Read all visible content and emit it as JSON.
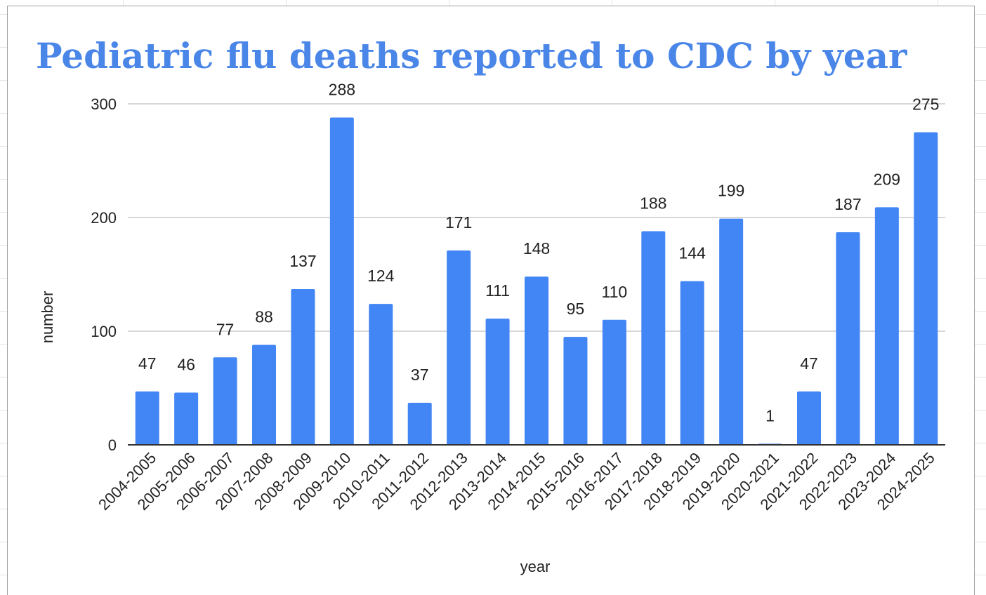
{
  "chart_data": {
    "type": "bar",
    "title": "Pediatric flu deaths reported to CDC by year",
    "xlabel": "year",
    "ylabel": "number",
    "ylim": [
      0,
      300
    ],
    "yticks": [
      0,
      100,
      200,
      300
    ],
    "grid": true,
    "legend": "none",
    "categories": [
      "2004-2005",
      "2005-2006",
      "2006-2007",
      "2007-2008",
      "2008-2009",
      "2009-2010",
      "2010-2011",
      "2011-2012",
      "2012-2013",
      "2013-2014",
      "2014-2015",
      "2015-2016",
      "2016-2017",
      "2017-2018",
      "2018-2019",
      "2019-2020",
      "2020-2021",
      "2021-2022",
      "2022-2023",
      "2023-2024",
      "2024-2025"
    ],
    "values": [
      47,
      46,
      77,
      88,
      137,
      288,
      124,
      37,
      171,
      111,
      148,
      95,
      110,
      188,
      144,
      199,
      1,
      47,
      187,
      209,
      275
    ],
    "colors": {
      "bar": "#4285f4",
      "title": "#4a86e8",
      "grid": "#cccccc",
      "axis": "#333333"
    }
  }
}
